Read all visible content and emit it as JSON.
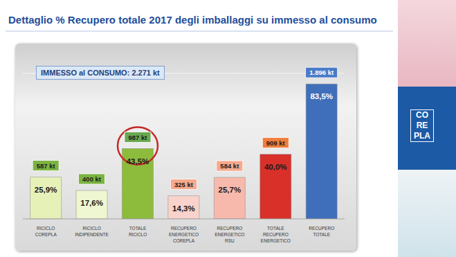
{
  "chart_data": {
    "type": "bar",
    "title": "Dettaglio % Recupero totale 2017 degli imballaggi su immesso al consumo",
    "annotation": "IMMESSO al CONSUMO: 2.271 kt",
    "logo": [
      "CO",
      "RE",
      "PLA"
    ],
    "categories": [
      "RICICLO COREPLA",
      "RICICLO INDIPENDENTE",
      "TOTALE RICICLO",
      "RECUPERO ENERGETICO COREPLA",
      "RECUPERO ENERGETICO RSU",
      "TOTALE RECUPERO ENERGETICO",
      "RECUPERO TOTALE"
    ],
    "values": [
      25.9,
      17.6,
      43.5,
      14.3,
      25.7,
      40.0,
      83.5
    ],
    "value_labels": [
      "25,9%",
      "17,6%",
      "43,5%",
      "14,3%",
      "25,7%",
      "40,0%",
      "83,5%"
    ],
    "tonnage": {
      "values": [
        587,
        400,
        987,
        325,
        584,
        909,
        1896
      ],
      "labels": [
        "587 kt",
        "400 kt",
        "987 kt",
        "325 kt",
        "584 kt",
        "909 kt",
        "1.896 kt"
      ]
    },
    "colors": [
      "#e6f1b8",
      "#eef6d2",
      "#8dbb3c",
      "#f9d3cb",
      "#f7b9ab",
      "#d9302a",
      "#3f6fba"
    ],
    "ylim": [
      0,
      90
    ],
    "yticks": [
      0,
      10,
      20,
      30,
      40,
      50,
      60,
      70,
      80,
      90
    ],
    "grid": true,
    "tick_labels": false,
    "data_labels": true
  }
}
